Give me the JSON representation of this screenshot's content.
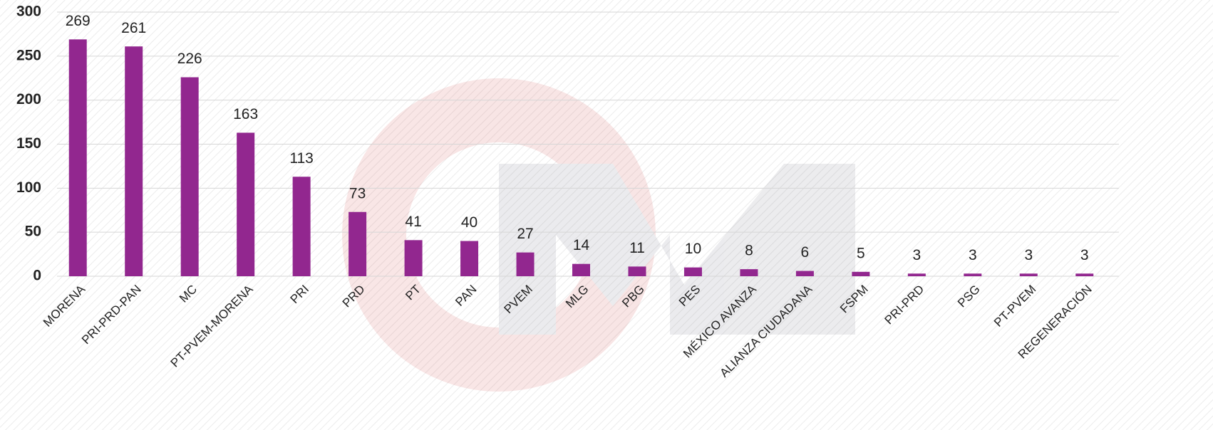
{
  "chart_data": {
    "type": "bar",
    "categories": [
      "MORENA",
      "PRI-PRD-PAN",
      "MC",
      "PT-PVEM-MORENA",
      "PRI",
      "PRD",
      "PT",
      "PAN",
      "PVEM",
      "MLG",
      "PBG",
      "PES",
      "MÉXICO AVANZA",
      "ALIANZA CIUDADANA",
      "FSPM",
      "PRI-PRD",
      "PSG",
      "PT-PVEM",
      "REGENERACIÓN"
    ],
    "values": [
      269,
      261,
      226,
      163,
      113,
      73,
      41,
      40,
      27,
      14,
      11,
      10,
      8,
      6,
      5,
      3,
      3,
      3,
      3
    ],
    "color": "#92278f",
    "ylim": [
      0,
      300
    ],
    "yticks": [
      0,
      50,
      100,
      150,
      200,
      250,
      300
    ],
    "grid": true
  }
}
